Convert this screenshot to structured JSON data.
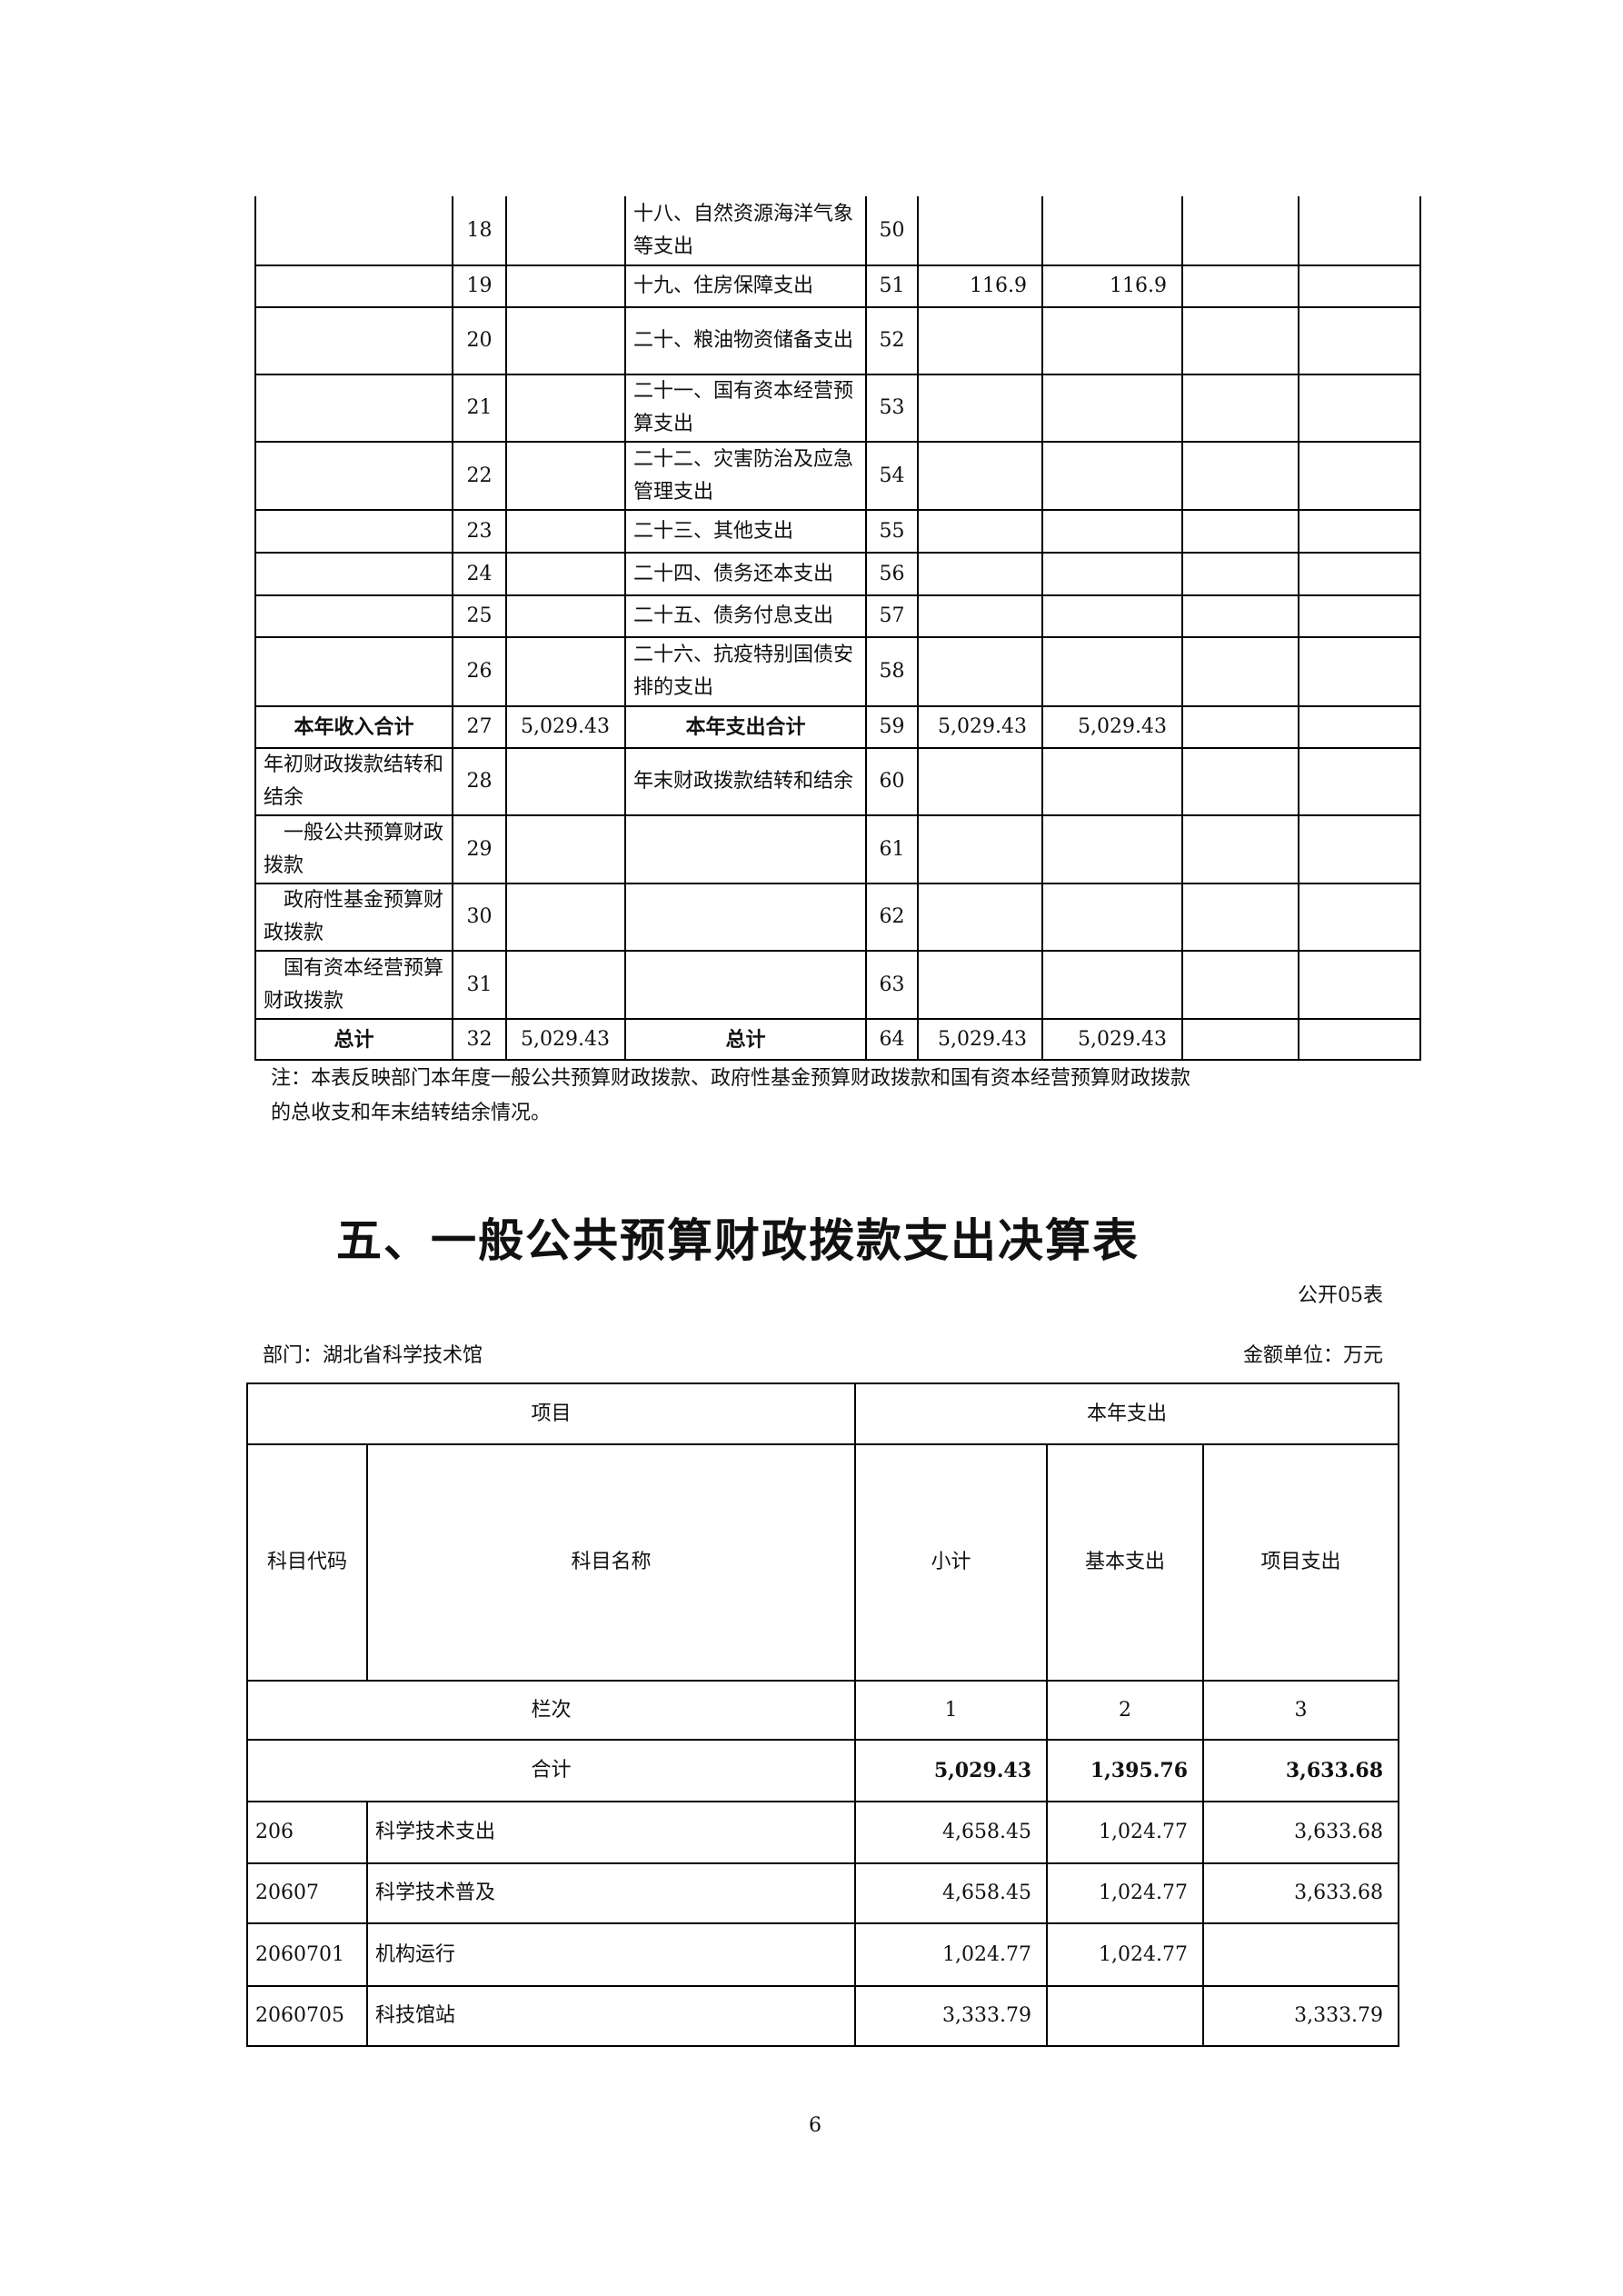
{
  "table4_continued": {
    "rows": [
      [
        "",
        "18",
        "",
        "十八、自然资源海洋气象等支出",
        "50",
        "",
        "",
        "",
        ""
      ],
      [
        "",
        "19",
        "",
        "十九、住房保障支出",
        "51",
        "116.9",
        "116.9",
        "",
        ""
      ],
      [
        "",
        "20",
        "",
        "二十、粮油物资储备支出",
        "52",
        "",
        "",
        "",
        ""
      ],
      [
        "",
        "21",
        "",
        "二十一、国有资本经营预算支出",
        "53",
        "",
        "",
        "",
        ""
      ],
      [
        "",
        "22",
        "",
        "二十二、灾害防治及应急管理支出",
        "54",
        "",
        "",
        "",
        ""
      ],
      [
        "",
        "23",
        "",
        "二十三、其他支出",
        "55",
        "",
        "",
        "",
        ""
      ],
      [
        "",
        "24",
        "",
        "二十四、债务还本支出",
        "56",
        "",
        "",
        "",
        ""
      ],
      [
        "",
        "25",
        "",
        "二十五、债务付息支出",
        "57",
        "",
        "",
        "",
        ""
      ],
      [
        "",
        "26",
        "",
        "二十六、抗疫特别国债安排的支出",
        "58",
        "",
        "",
        "",
        ""
      ],
      [
        "本年收入合计",
        "27",
        "5,029.43",
        "本年支出合计",
        "59",
        "5,029.43",
        "5,029.43",
        "",
        ""
      ],
      [
        "年初财政拨款结转和结余",
        "28",
        "",
        "年末财政拨款结转和结余",
        "60",
        "",
        "",
        "",
        ""
      ],
      [
        "　一般公共预算财政拨款",
        "29",
        "",
        "",
        "61",
        "",
        "",
        "",
        ""
      ],
      [
        "　政府性基金预算财政拨款",
        "30",
        "",
        "",
        "62",
        "",
        "",
        "",
        ""
      ],
      [
        "　国有资本经营预算财政拨款",
        "31",
        "",
        "",
        "63",
        "",
        "",
        "",
        ""
      ],
      [
        "总计",
        "32",
        "5,029.43",
        "总计",
        "64",
        "5,029.43",
        "5,029.43",
        "",
        ""
      ]
    ],
    "note_line1": "注：本表反映部门本年度一般公共预算财政拨款、政府性基金预算财政拨款和国有资本经营预算财政拨款",
    "note_line2": "的总收支和年末结转结余情况。"
  },
  "table5": {
    "title": "五、一般公共预算财政拨款支出决算表",
    "form_no": "公开05表",
    "department": "部门：湖北省科学技术馆",
    "unit": "金额单位：万元",
    "header": {
      "item": "项目",
      "this_year_expense": "本年支出",
      "code": "科目代码",
      "name": "科目名称",
      "subtotal": "小计",
      "basic": "基本支出",
      "project": "项目支出",
      "column_no_label": "栏次",
      "col1": "1",
      "col2": "2",
      "col3": "3"
    },
    "total": {
      "label": "合计",
      "subtotal": "5,029.43",
      "basic": "1,395.76",
      "project": "3,633.68"
    },
    "rows": [
      {
        "code": "206",
        "name": "科学技术支出",
        "subtotal": "4,658.45",
        "basic": "1,024.77",
        "project": "3,633.68"
      },
      {
        "code": "20607",
        "name": "科学技术普及",
        "subtotal": "4,658.45",
        "basic": "1,024.77",
        "project": "3,633.68"
      },
      {
        "code": "2060701",
        "name": "机构运行",
        "subtotal": "1,024.77",
        "basic": "1,024.77",
        "project": ""
      },
      {
        "code": "2060705",
        "name": "科技馆站",
        "subtotal": "3,333.79",
        "basic": "",
        "project": "3,333.79"
      }
    ]
  },
  "page_number": "6"
}
